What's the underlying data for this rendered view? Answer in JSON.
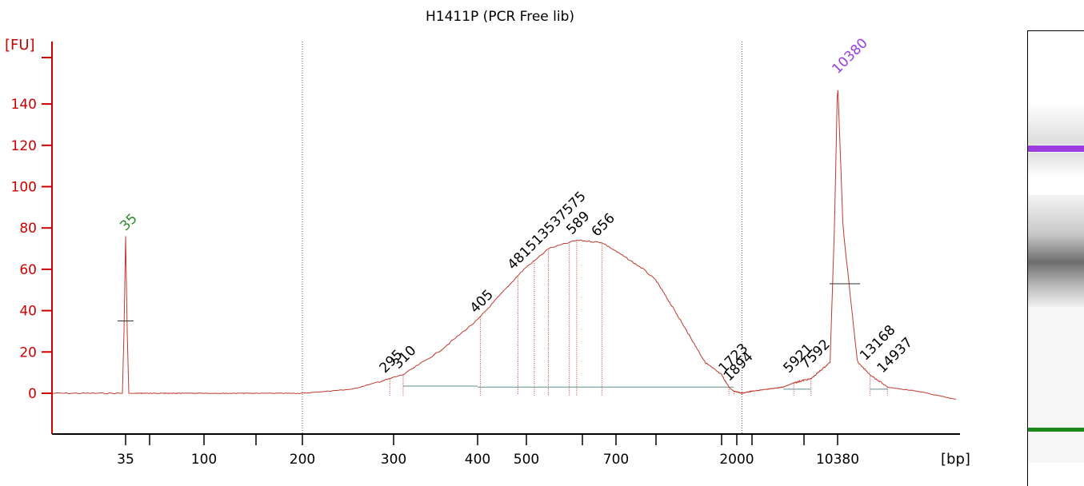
{
  "chart_data": {
    "type": "line",
    "title": "H1411P (PCR Free lib)",
    "ylabel": "[FU]",
    "xlabel": "[bp]",
    "ylim": [
      -18,
      160
    ],
    "yticks": [
      0,
      20,
      40,
      60,
      80,
      100,
      120,
      140
    ],
    "xticks": [
      "35",
      "100",
      "200",
      "300",
      "400",
      "500",
      "700",
      "2000",
      "10380"
    ],
    "x_scale": "sizing ladder (nonlinear)",
    "grid": false,
    "series": [
      {
        "points": [
          [
            35,
            0
          ],
          [
            35,
            76
          ],
          [
            35,
            0
          ],
          [
            200,
            0
          ],
          [
            250,
            2
          ],
          [
            295,
            7
          ],
          [
            310,
            9
          ],
          [
            350,
            20
          ],
          [
            405,
            37
          ],
          [
            481,
            57
          ],
          [
            513,
            64
          ],
          [
            537,
            70
          ],
          [
            575,
            73
          ],
          [
            589,
            74
          ],
          [
            656,
            73
          ],
          [
            800,
            60
          ],
          [
            1000,
            40
          ],
          [
            1300,
            15
          ],
          [
            1723,
            3
          ],
          [
            1894,
            1
          ],
          [
            2300,
            0
          ],
          [
            5000,
            3
          ],
          [
            5921,
            5
          ],
          [
            7592,
            7
          ],
          [
            9500,
            15
          ],
          [
            10000,
            80
          ],
          [
            10380,
            152
          ],
          [
            10800,
            80
          ],
          [
            12000,
            15
          ],
          [
            13168,
            9
          ],
          [
            14937,
            3
          ],
          [
            17000,
            1
          ],
          [
            20000,
            -3
          ]
        ]
      }
    ],
    "markers": [
      {
        "label": "35",
        "x": 35,
        "y": 76,
        "color": "#2a8a2a"
      },
      {
        "label": "10380",
        "x": 10380,
        "y": 152,
        "color": "#9b3de0"
      }
    ],
    "peak_labels": [
      "295",
      "310",
      "405",
      "481",
      "513",
      "537",
      "575",
      "589",
      "656",
      "1723",
      "1894",
      "5921",
      "7592",
      "13168",
      "14937"
    ],
    "peak_label_display": [
      "481513537575"
    ],
    "dotted_lines_at": [
      200,
      2300
    ],
    "gel_bands": [
      {
        "name": "upper-marker",
        "color": "#9b3de0"
      },
      {
        "name": "sample-smear",
        "color": "#777777"
      },
      {
        "name": "lower-marker",
        "color": "#1a8a1a"
      }
    ]
  }
}
